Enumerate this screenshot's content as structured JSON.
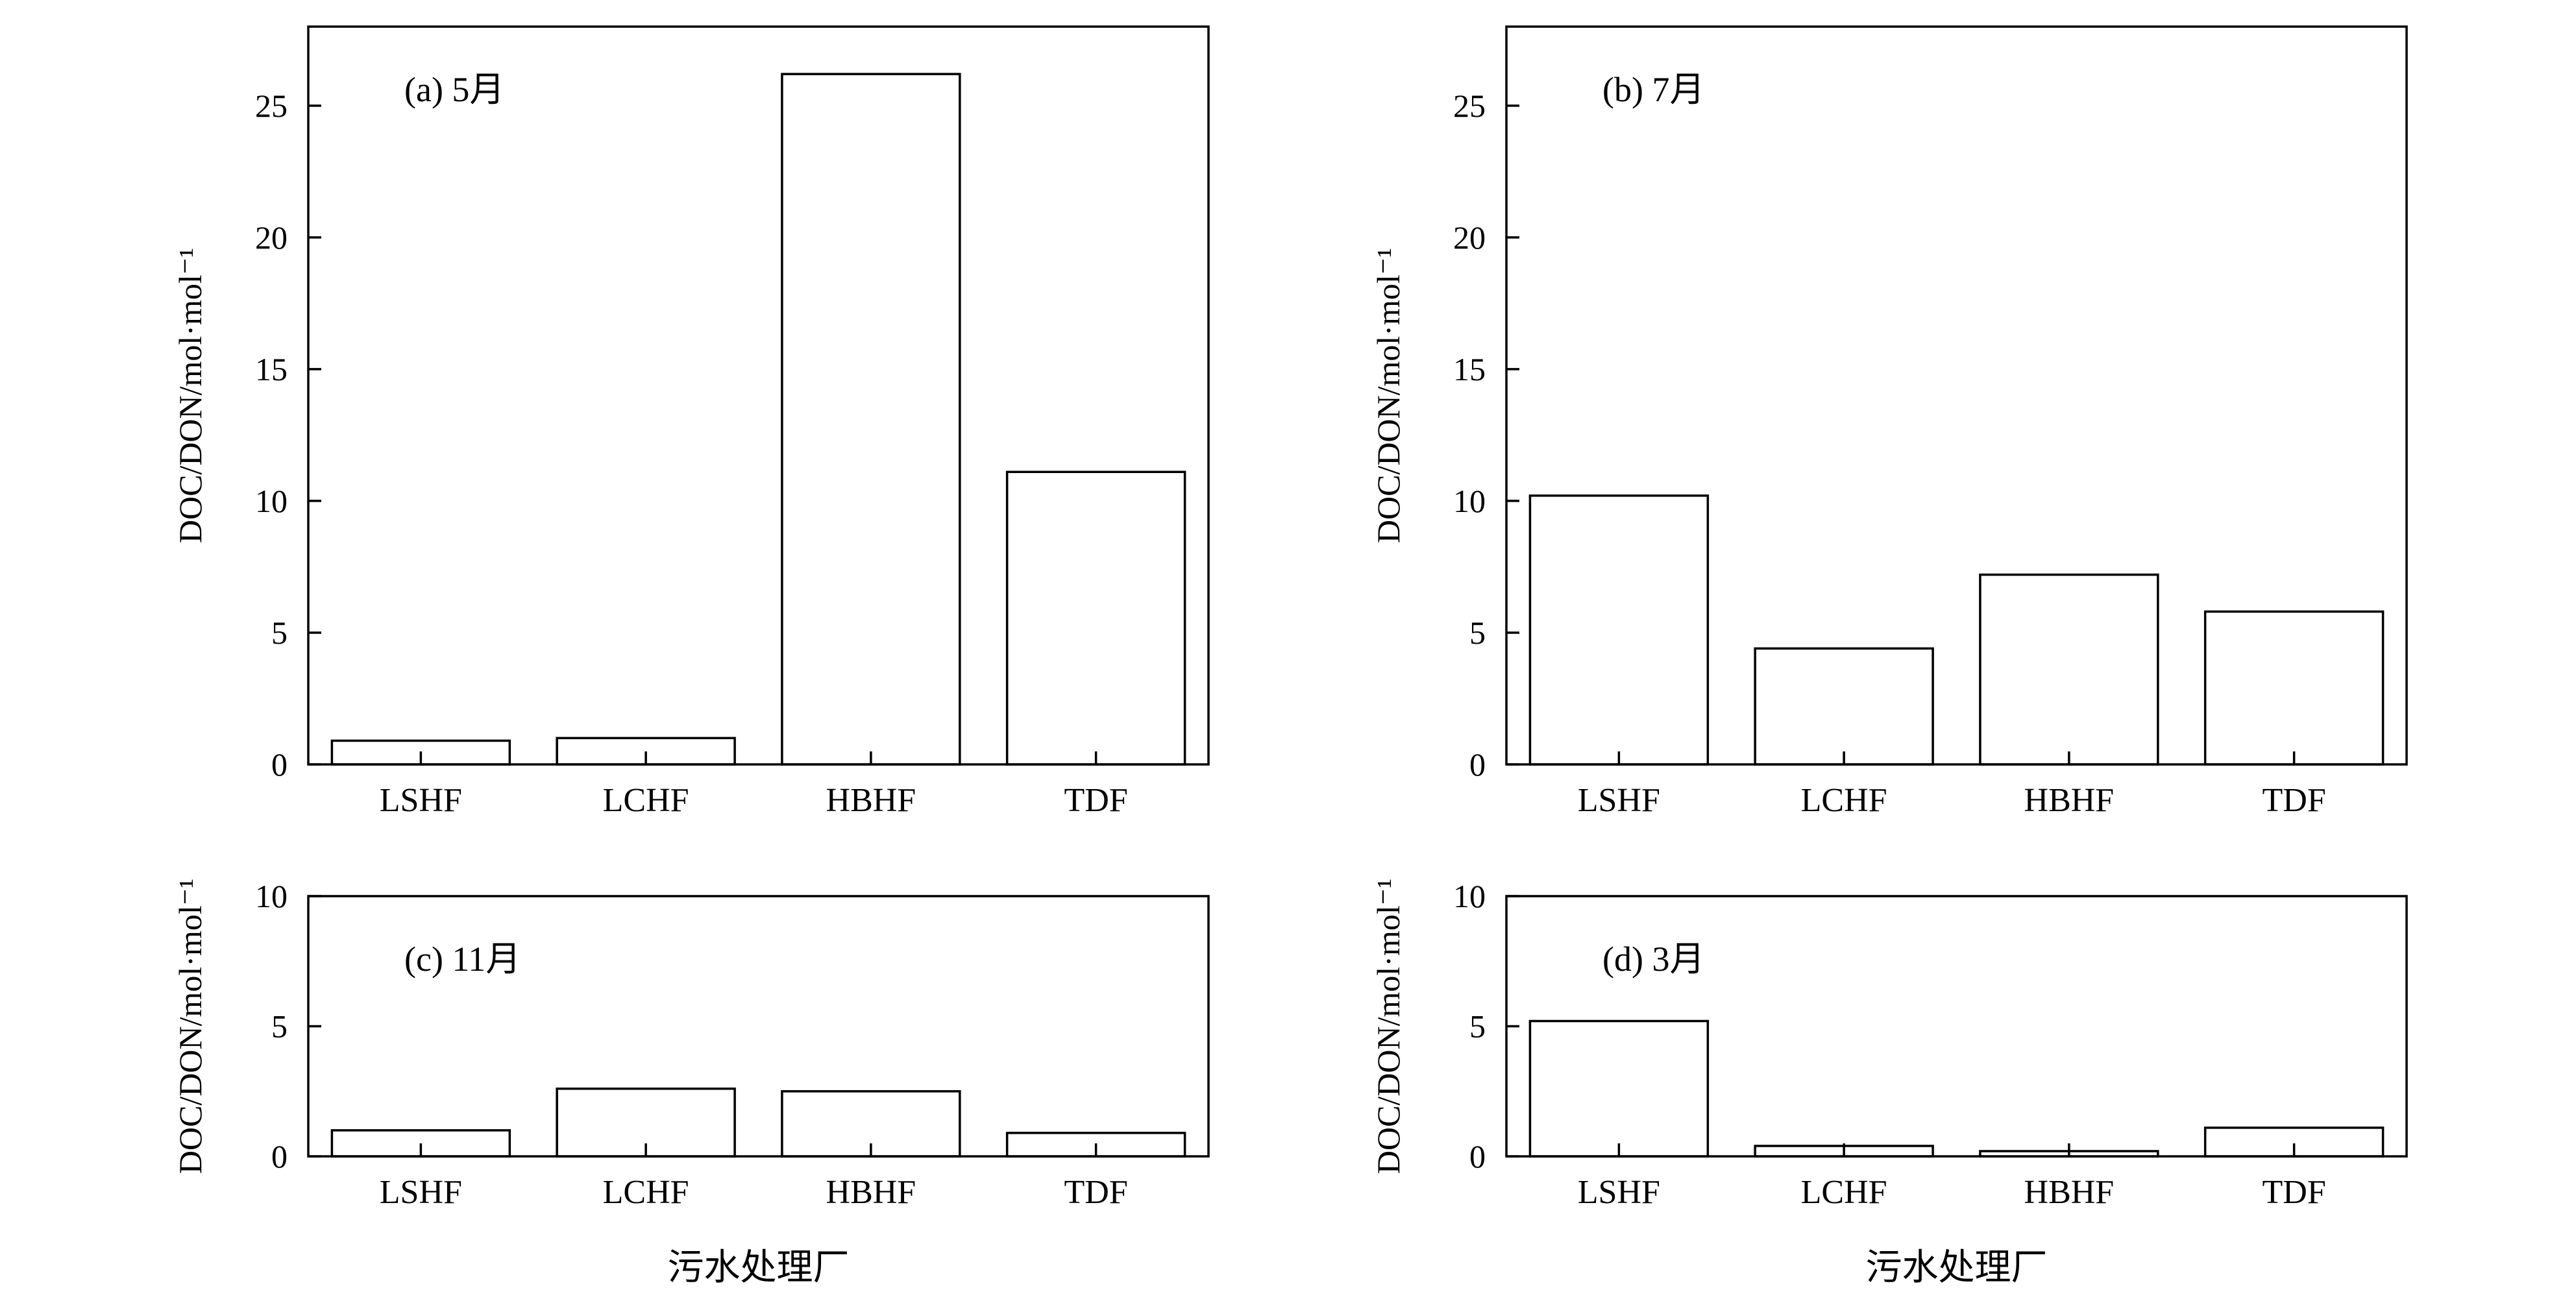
{
  "chart_data": [
    {
      "type": "bar",
      "panel_label": "(a) 5月",
      "categories": [
        "LSHF",
        "LCHF",
        "HBHF",
        "TDF"
      ],
      "values": [
        0.9,
        1.0,
        26.2,
        11.1
      ],
      "ylabel": "DOC/DON/mol·mol⁻¹",
      "xlabel": "",
      "ylim": [
        0,
        28
      ],
      "yticks": [
        0,
        5,
        10,
        15,
        20,
        25
      ]
    },
    {
      "type": "bar",
      "panel_label": "(b) 7月",
      "categories": [
        "LSHF",
        "LCHF",
        "HBHF",
        "TDF"
      ],
      "values": [
        10.2,
        4.4,
        7.2,
        5.8
      ],
      "ylabel": "DOC/DON/mol·mol⁻¹",
      "xlabel": "",
      "ylim": [
        0,
        28
      ],
      "yticks": [
        0,
        5,
        10,
        15,
        20,
        25
      ]
    },
    {
      "type": "bar",
      "panel_label": "(c) 11月",
      "categories": [
        "LSHF",
        "LCHF",
        "HBHF",
        "TDF"
      ],
      "values": [
        1.0,
        2.6,
        2.5,
        0.9
      ],
      "ylabel": "DOC/DON/mol·mol⁻¹",
      "xlabel": "污水处理厂",
      "ylim": [
        0,
        10
      ],
      "yticks": [
        0,
        5,
        10
      ]
    },
    {
      "type": "bar",
      "panel_label": "(d) 3月",
      "categories": [
        "LSHF",
        "LCHF",
        "HBHF",
        "TDF"
      ],
      "values": [
        5.2,
        0.4,
        0.2,
        1.1
      ],
      "ylabel": "DOC/DON/mol·mol⁻¹",
      "xlabel": "污水处理厂",
      "ylim": [
        0,
        10
      ],
      "yticks": [
        0,
        5,
        10
      ]
    }
  ]
}
